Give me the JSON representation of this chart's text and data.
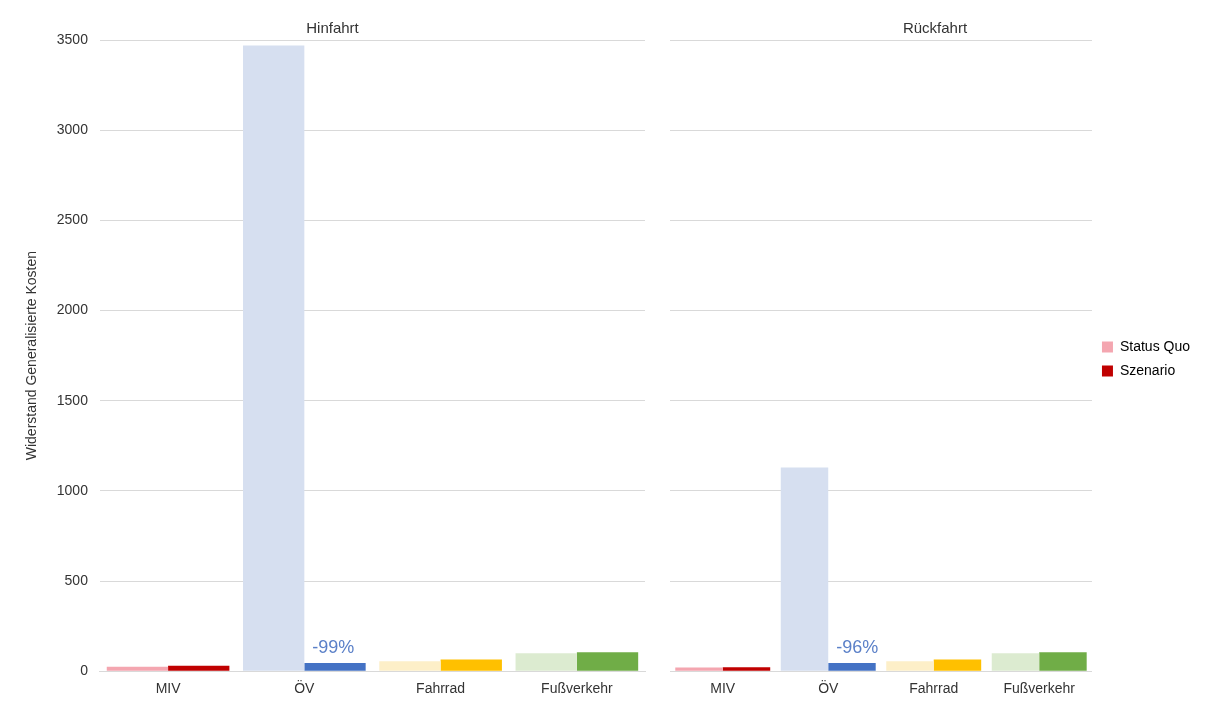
{
  "chart_data": [
    {
      "type": "bar",
      "title": "Hinfahrt",
      "ylabel": "Widerstand Generalisierte Kosten",
      "categories": [
        "MIV",
        "ÖV",
        "Fahrrad",
        "Fußverkehr"
      ],
      "ylim": [
        0,
        3500
      ],
      "yticks": [
        0,
        500,
        1000,
        1500,
        2000,
        2500,
        3000,
        3500
      ],
      "grid": "y",
      "legend": false,
      "series": [
        {
          "colors": [
            "#f4a6b0",
            "#d6dff0",
            "#fdefc8",
            "#dcebd0"
          ],
          "values": [
            25,
            3470,
            55,
            100
          ]
        },
        {
          "colors": [
            "#c00000",
            "#4472c4",
            "#ffc000",
            "#70ad47"
          ],
          "values": [
            30,
            45,
            65,
            105
          ]
        }
      ],
      "annotations": [
        {
          "text": "-99%",
          "x": "ÖV",
          "y": 130
        }
      ]
    },
    {
      "type": "bar",
      "title": "Rückfahrt",
      "categories": [
        "MIV",
        "ÖV",
        "Fahrrad",
        "Fußverkehr"
      ],
      "ylim": [
        0,
        3500
      ],
      "yticks": [
        0,
        500,
        1000,
        1500,
        2000,
        2500,
        3000,
        3500
      ],
      "grid": "y",
      "legend": "right",
      "tick_labels": "x",
      "series": [
        {
          "name": "Status Quo",
          "color": "#f4a6b0",
          "colors": [
            "#f4a6b0",
            "#d6dff0",
            "#fdefc8",
            "#dcebd0"
          ],
          "values": [
            20,
            1130,
            55,
            100
          ]
        },
        {
          "name": "Szenario",
          "color": "#c00000",
          "colors": [
            "#c00000",
            "#4472c4",
            "#ffc000",
            "#70ad47"
          ],
          "values": [
            22,
            45,
            65,
            105
          ]
        }
      ],
      "annotations": [
        {
          "text": "-96%",
          "x": "ÖV",
          "y": 130
        }
      ]
    }
  ]
}
